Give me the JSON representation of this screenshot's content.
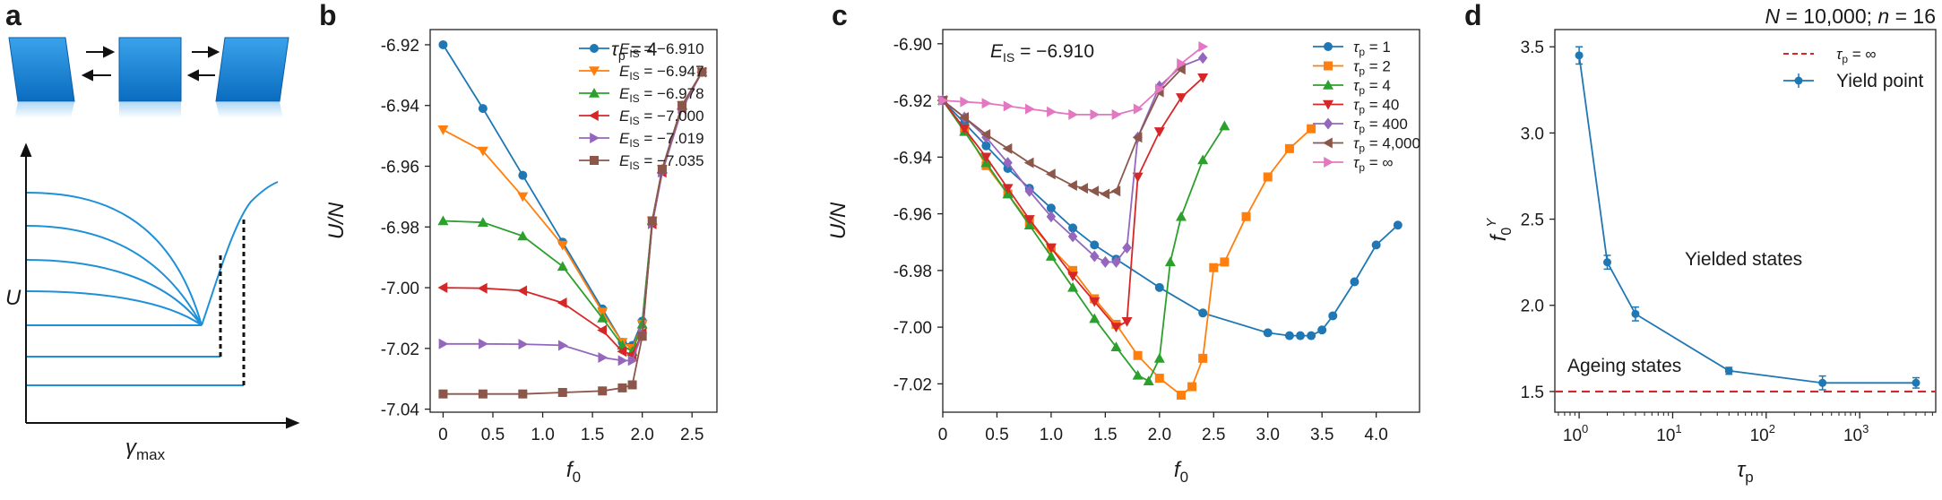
{
  "panels": {
    "a": {
      "label": "a",
      "ylabel": "U",
      "xlabel": "γ",
      "xlabel_sub": "max"
    },
    "b": {
      "label": "b"
    },
    "c": {
      "label": "c"
    },
    "d": {
      "label": "d"
    }
  },
  "header": {
    "N": "N",
    "eq1": " = 10,000; ",
    "n": "n",
    "eq2": " = 16"
  },
  "colors": {
    "blue": "#1f77b4",
    "orange": "#ff7f0e",
    "green": "#2ca02c",
    "red": "#d62728",
    "purple": "#9467bd",
    "brown": "#8c564b",
    "pink": "#e377c2",
    "red_dashed": "#d62728",
    "schematic_blue": "#1e90d8"
  },
  "chart_data": [
    {
      "panel": "b",
      "type": "line",
      "xlabel": "f",
      "xlabel_sub": "0",
      "ylabel": "U/N",
      "xlim": [
        -0.13,
        2.75
      ],
      "ylim": [
        -7.041,
        -6.915
      ],
      "xticks": [
        "0",
        "0.5",
        "1.0",
        "1.5",
        "2.0",
        "2.5"
      ],
      "xtick_values": [
        0,
        0.5,
        1.0,
        1.5,
        2.0,
        2.5
      ],
      "yticks": [
        "-6.92",
        "-6.94",
        "-6.96",
        "-6.98",
        "-7.00",
        "-7.02",
        "-7.04"
      ],
      "ytick_values": [
        -6.92,
        -6.94,
        -6.96,
        -6.98,
        -7.0,
        -7.02,
        -7.04
      ],
      "annotation": {
        "sym": "τ",
        "sub": "p",
        "rest": " = 4"
      },
      "legend_position": "upper-right",
      "series": [
        {
          "legend_sym": "E",
          "legend_sub": "IS",
          "legend_rest": " = −6.910",
          "marker": "circle",
          "color": "#1f77b4",
          "x": [
            0,
            0.4,
            0.8,
            1.2,
            1.6,
            1.8,
            1.9,
            2.0,
            2.1,
            2.2,
            2.4,
            2.6
          ],
          "y": [
            -6.92,
            -6.941,
            -6.963,
            -6.985,
            -7.007,
            -7.018,
            -7.019,
            -7.011,
            -6.978,
            -6.961,
            -6.94,
            -6.929
          ]
        },
        {
          "legend_sym": "E",
          "legend_sub": "IS",
          "legend_rest": " = −6.947",
          "marker": "triangle-down",
          "color": "#ff7f0e",
          "x": [
            0,
            0.4,
            0.8,
            1.2,
            1.6,
            1.8,
            1.9,
            2.0,
            2.1,
            2.2,
            2.4,
            2.6
          ],
          "y": [
            -6.948,
            -6.955,
            -6.97,
            -6.986,
            -7.008,
            -7.018,
            -7.02,
            -7.012,
            -6.978,
            -6.961,
            -6.94,
            -6.929
          ]
        },
        {
          "legend_sym": "E",
          "legend_sub": "IS",
          "legend_rest": " = −6.978",
          "marker": "triangle-up",
          "color": "#2ca02c",
          "x": [
            0,
            0.4,
            0.8,
            1.2,
            1.6,
            1.8,
            1.9,
            2.0,
            2.1,
            2.2,
            2.4,
            2.6
          ],
          "y": [
            -6.978,
            -6.9785,
            -6.983,
            -6.993,
            -7.01,
            -7.019,
            -7.021,
            -7.012,
            -6.978,
            -6.961,
            -6.94,
            -6.929
          ]
        },
        {
          "legend_sym": "E",
          "legend_sub": "IS",
          "legend_rest": " = −7.000",
          "marker": "triangle-left",
          "color": "#d62728",
          "x": [
            0,
            0.4,
            0.8,
            1.2,
            1.6,
            1.8,
            1.9,
            2.0,
            2.1,
            2.2,
            2.4,
            2.6
          ],
          "y": [
            -7.0,
            -7.0002,
            -7.001,
            -7.005,
            -7.014,
            -7.021,
            -7.022,
            -7.015,
            -6.979,
            -6.962,
            -6.941,
            -6.929
          ]
        },
        {
          "legend_sym": "E",
          "legend_sub": "IS",
          "legend_rest": " = −7.019",
          "marker": "triangle-right",
          "color": "#9467bd",
          "x": [
            0,
            0.4,
            0.8,
            1.2,
            1.6,
            1.8,
            1.9,
            2.0,
            2.1,
            2.2,
            2.4,
            2.6
          ],
          "y": [
            -7.0185,
            -7.0185,
            -7.0186,
            -7.019,
            -7.023,
            -7.024,
            -7.024,
            -7.015,
            -6.979,
            -6.962,
            -6.941,
            -6.929
          ]
        },
        {
          "legend_sym": "E",
          "legend_sub": "IS",
          "legend_rest": " = −7.035",
          "marker": "square",
          "color": "#8c564b",
          "x": [
            0,
            0.4,
            0.8,
            1.2,
            1.6,
            1.8,
            1.9,
            2.0,
            2.1,
            2.2,
            2.4,
            2.6
          ],
          "y": [
            -7.035,
            -7.035,
            -7.035,
            -7.0345,
            -7.034,
            -7.033,
            -7.032,
            -7.016,
            -6.978,
            -6.961,
            -6.94,
            -6.929
          ]
        }
      ]
    },
    {
      "panel": "c",
      "type": "line",
      "xlabel": "f",
      "xlabel_sub": "0",
      "ylabel": "U/N",
      "xlim": [
        0,
        4.4
      ],
      "ylim": [
        -7.03,
        -6.895
      ],
      "xticks": [
        "0",
        "0.5",
        "1.0",
        "1.5",
        "2.0",
        "2.5",
        "3.0",
        "3.5",
        "4.0"
      ],
      "xtick_values": [
        0,
        0.5,
        1.0,
        1.5,
        2.0,
        2.5,
        3.0,
        3.5,
        4.0
      ],
      "yticks": [
        "-6.90",
        "-6.92",
        "-6.94",
        "-6.96",
        "-6.98",
        "-7.00",
        "-7.02"
      ],
      "ytick_values": [
        -6.9,
        -6.92,
        -6.94,
        -6.96,
        -6.98,
        -7.0,
        -7.02
      ],
      "annotation": {
        "sym": "E",
        "sub": "IS",
        "rest": " = −6.910"
      },
      "legend_position": "upper-right",
      "series": [
        {
          "legend_sym": "τ",
          "legend_sub": "p",
          "legend_rest": " = 1",
          "marker": "circle",
          "color": "#1f77b4",
          "x": [
            0,
            0.2,
            0.4,
            0.6,
            0.8,
            1.0,
            1.2,
            1.4,
            1.6,
            2.0,
            2.4,
            3.0,
            3.2,
            3.3,
            3.4,
            3.5,
            3.6,
            3.8,
            4.0,
            4.2
          ],
          "y": [
            -6.92,
            -6.928,
            -6.936,
            -6.944,
            -6.951,
            -6.958,
            -6.965,
            -6.971,
            -6.976,
            -6.986,
            -6.995,
            -7.002,
            -7.003,
            -7.003,
            -7.003,
            -7.001,
            -6.996,
            -6.984,
            -6.971,
            -6.964
          ]
        },
        {
          "legend_sym": "τ",
          "legend_sub": "p",
          "legend_rest": " = 2",
          "marker": "square",
          "color": "#ff7f0e",
          "x": [
            0,
            0.2,
            0.4,
            0.6,
            0.8,
            1.0,
            1.2,
            1.4,
            1.6,
            1.8,
            2.0,
            2.2,
            2.3,
            2.4,
            2.5,
            2.6,
            2.8,
            3.0,
            3.2,
            3.4
          ],
          "y": [
            -6.92,
            -6.93,
            -6.943,
            -6.953,
            -6.963,
            -6.972,
            -6.98,
            -6.99,
            -6.999,
            -7.01,
            -7.018,
            -7.024,
            -7.021,
            -7.011,
            -6.979,
            -6.977,
            -6.961,
            -6.947,
            -6.937,
            -6.93
          ]
        },
        {
          "legend_sym": "τ",
          "legend_sub": "p",
          "legend_rest": " = 4",
          "marker": "triangle-up",
          "color": "#2ca02c",
          "x": [
            0,
            0.2,
            0.4,
            0.6,
            0.8,
            1.0,
            1.2,
            1.4,
            1.6,
            1.8,
            1.9,
            2.0,
            2.1,
            2.2,
            2.4,
            2.6
          ],
          "y": [
            -6.92,
            -6.931,
            -6.942,
            -6.953,
            -6.964,
            -6.975,
            -6.986,
            -6.997,
            -7.007,
            -7.017,
            -7.019,
            -7.011,
            -6.977,
            -6.961,
            -6.941,
            -6.929
          ]
        },
        {
          "legend_sym": "τ",
          "legend_sub": "p",
          "legend_rest": " = 40",
          "marker": "triangle-down",
          "color": "#d62728",
          "x": [
            0,
            0.2,
            0.4,
            0.6,
            0.8,
            1.0,
            1.2,
            1.4,
            1.6,
            1.7,
            1.8,
            2.0,
            2.2,
            2.4
          ],
          "y": [
            -6.92,
            -6.93,
            -6.94,
            -6.951,
            -6.962,
            -6.972,
            -6.982,
            -6.991,
            -7.0,
            -6.998,
            -6.947,
            -6.931,
            -6.919,
            -6.912
          ]
        },
        {
          "legend_sym": "τ",
          "legend_sub": "p",
          "legend_rest": " = 400",
          "marker": "diamond",
          "color": "#9467bd",
          "x": [
            0,
            0.2,
            0.4,
            0.6,
            0.8,
            1.0,
            1.2,
            1.4,
            1.5,
            1.6,
            1.7,
            1.8,
            2.0,
            2.2,
            2.4
          ],
          "y": [
            -6.92,
            -6.926,
            -6.933,
            -6.942,
            -6.952,
            -6.961,
            -6.968,
            -6.975,
            -6.977,
            -6.977,
            -6.972,
            -6.933,
            -6.915,
            -6.908,
            -6.905
          ]
        },
        {
          "legend_sym": "τ",
          "legend_sub": "p",
          "legend_rest": " = 4,000",
          "marker": "triangle-left",
          "color": "#8c564b",
          "x": [
            0,
            0.2,
            0.4,
            0.6,
            0.8,
            1.0,
            1.2,
            1.3,
            1.4,
            1.5,
            1.6,
            1.8,
            2.0,
            2.2
          ],
          "y": [
            -6.92,
            -6.926,
            -6.932,
            -6.937,
            -6.942,
            -6.946,
            -6.95,
            -6.951,
            -6.952,
            -6.953,
            -6.952,
            -6.933,
            -6.917,
            -6.909
          ]
        },
        {
          "legend_sym": "τ",
          "legend_sub": "p",
          "legend_rest": " = ∞",
          "marker": "triangle-right",
          "color": "#e377c2",
          "x": [
            0,
            0.2,
            0.4,
            0.6,
            0.8,
            1.0,
            1.2,
            1.4,
            1.6,
            1.8,
            2.0,
            2.2,
            2.4
          ],
          "y": [
            -6.92,
            -6.9205,
            -6.921,
            -6.922,
            -6.923,
            -6.924,
            -6.925,
            -6.925,
            -6.925,
            -6.923,
            -6.916,
            -6.907,
            -6.901
          ]
        }
      ]
    },
    {
      "panel": "d",
      "type": "line",
      "xscale": "log",
      "xlabel": "τ",
      "xlabel_sub": "p",
      "ylabel": "f",
      "ylabel_sub": "0",
      "ylabel_sup": "Y",
      "xlim": [
        0.55,
        6500
      ],
      "ylim": [
        1.38,
        3.6
      ],
      "xticks": [
        "10",
        "10",
        "10",
        "10"
      ],
      "xtick_exps": [
        "0",
        "1",
        "2",
        "3"
      ],
      "xtick_values": [
        1,
        10,
        100,
        1000
      ],
      "yticks": [
        "1.5",
        "2.0",
        "2.5",
        "3.0",
        "3.5"
      ],
      "ytick_values": [
        1.5,
        2.0,
        2.5,
        3.0,
        3.5
      ],
      "series": [
        {
          "name": "Yield point",
          "marker": "circle",
          "color": "#1f77b4",
          "errorbars": true,
          "x": [
            1,
            2,
            4,
            40,
            400,
            4000
          ],
          "y": [
            3.45,
            2.25,
            1.95,
            1.62,
            1.55,
            1.55
          ],
          "err": [
            0.05,
            0.04,
            0.04,
            0.02,
            0.04,
            0.03
          ]
        }
      ],
      "hline": {
        "y": 1.5,
        "color": "#d62728",
        "style": "dashed",
        "legend_sym": "τ",
        "legend_sub": "p",
        "legend_rest": " = ∞"
      },
      "annotations": [
        "Yielded states",
        "Ageing states"
      ],
      "legend_position": "upper-right"
    }
  ]
}
